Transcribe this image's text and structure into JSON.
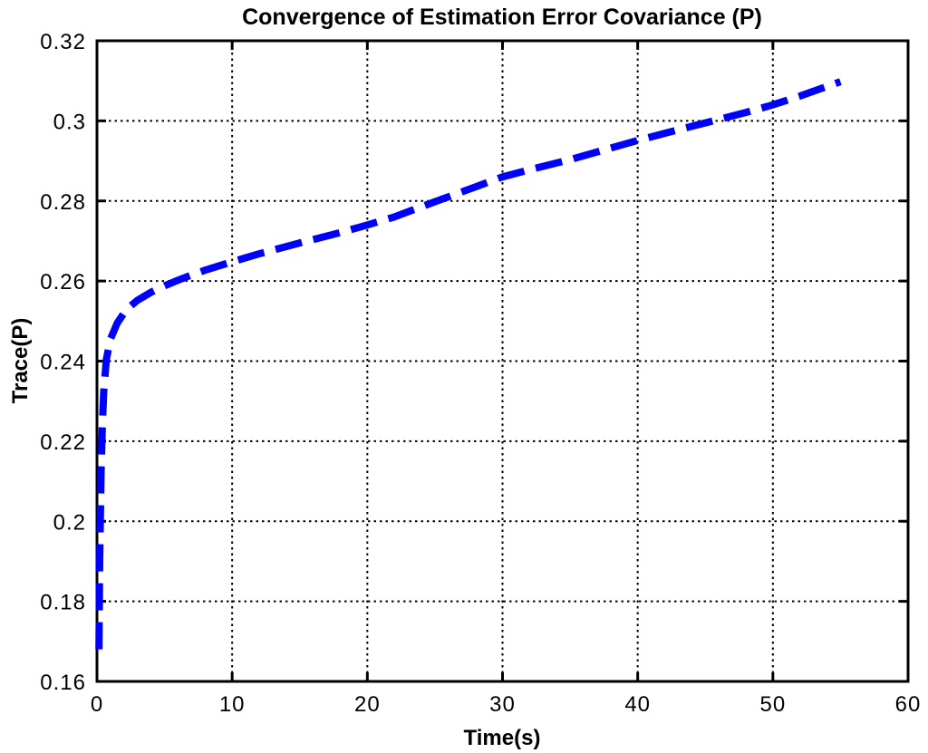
{
  "figure": {
    "background": "#ffffff",
    "axis_color": "#000000",
    "grid_color": "#000000"
  },
  "chart_data": {
    "type": "line",
    "title": "Convergence of Estimation Error Covariance (P)",
    "xlabel": "Time(s)",
    "ylabel": "Trace(P)",
    "xlim": [
      0,
      60
    ],
    "ylim": [
      0.16,
      0.32
    ],
    "grid": true,
    "grid_style": "dotted",
    "legend_position": "none",
    "xticks": [
      0,
      10,
      20,
      30,
      40,
      50,
      60
    ],
    "xtick_labels": [
      "0",
      "10",
      "20",
      "30",
      "40",
      "50",
      "60"
    ],
    "yticks": [
      0.16,
      0.18,
      0.2,
      0.22,
      0.24,
      0.26,
      0.28,
      0.3,
      0.32
    ],
    "ytick_labels": [
      "0.16",
      "0.18",
      "0.2",
      "0.22",
      "0.24",
      "0.26",
      "0.28",
      "0.3",
      "0.32"
    ],
    "series": [
      {
        "name": "Trace(P)",
        "color": "#0000FF",
        "line_style": "dashed",
        "line_width": 8,
        "points": [
          [
            0.15,
            0.168
          ],
          [
            0.2,
            0.19
          ],
          [
            0.3,
            0.212
          ],
          [
            0.4,
            0.2245
          ],
          [
            0.5,
            0.2325
          ],
          [
            0.7,
            0.2405
          ],
          [
            1.0,
            0.2455
          ],
          [
            1.5,
            0.2495
          ],
          [
            2.0,
            0.252
          ],
          [
            2.5,
            0.2538
          ],
          [
            3.0,
            0.2552
          ],
          [
            4.0,
            0.2572
          ],
          [
            5.0,
            0.2588
          ],
          [
            6.0,
            0.2602
          ],
          [
            7.0,
            0.2615
          ],
          [
            8.0,
            0.2627
          ],
          [
            10,
            0.2648
          ],
          [
            12,
            0.2668
          ],
          [
            15,
            0.2695
          ],
          [
            18,
            0.2721
          ],
          [
            20,
            0.274
          ],
          [
            22,
            0.276
          ],
          [
            25,
            0.2798
          ],
          [
            28,
            0.2835
          ],
          [
            30,
            0.286
          ],
          [
            32,
            0.2878
          ],
          [
            35,
            0.2903
          ],
          [
            38,
            0.2932
          ],
          [
            40,
            0.2951
          ],
          [
            42,
            0.2969
          ],
          [
            45,
            0.2995
          ],
          [
            48,
            0.3021
          ],
          [
            50,
            0.304
          ],
          [
            52,
            0.3062
          ],
          [
            55,
            0.3098
          ]
        ]
      }
    ]
  }
}
